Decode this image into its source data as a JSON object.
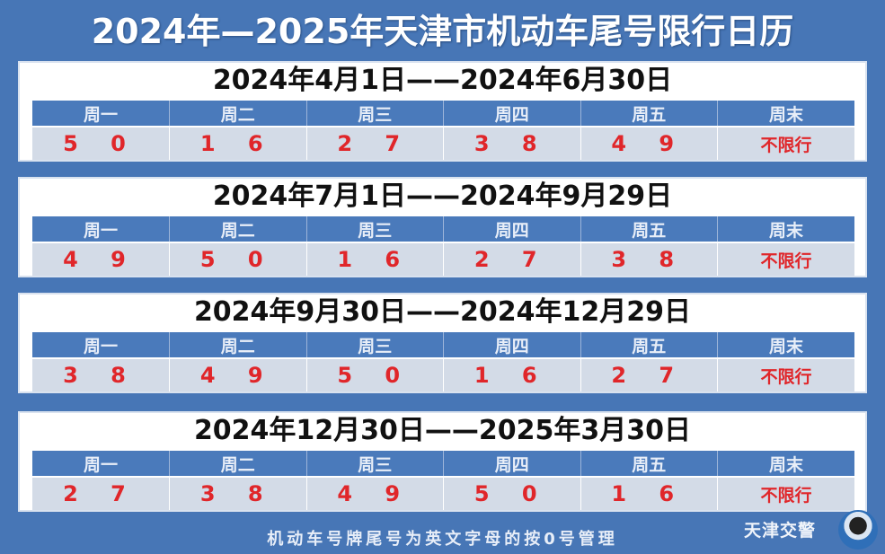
{
  "title": "2024年—2025年天津市机动车尾号限行日历",
  "weekdays": [
    "周一",
    "周二",
    "周三",
    "周四",
    "周五",
    "周末"
  ],
  "periods": [
    {
      "range": "2024年4月1日——2024年6月30日",
      "values": [
        "5 0",
        "1 6",
        "2 7",
        "3 8",
        "4 9",
        "不限行"
      ]
    },
    {
      "range": "2024年7月1日——2024年9月29日",
      "values": [
        "4 9",
        "5 0",
        "1 6",
        "2 7",
        "3 8",
        "不限行"
      ]
    },
    {
      "range": "2024年9月30日——2024年12月29日",
      "values": [
        "3 8",
        "4 9",
        "5 0",
        "1 6",
        "2 7",
        "不限行"
      ]
    },
    {
      "range": "2024年12月30日——2025年3月30日",
      "values": [
        "2 7",
        "3 8",
        "4 9",
        "5 0",
        "1 6",
        "不限行"
      ]
    }
  ],
  "footer_note": "机动车号牌尾号为英文字母的按0号管理",
  "brand": "天津交警",
  "colors": {
    "background": "#4776b6",
    "header": "#4a7abb",
    "value_text": "#e0262a",
    "value_bg": "#d3dbe7"
  }
}
